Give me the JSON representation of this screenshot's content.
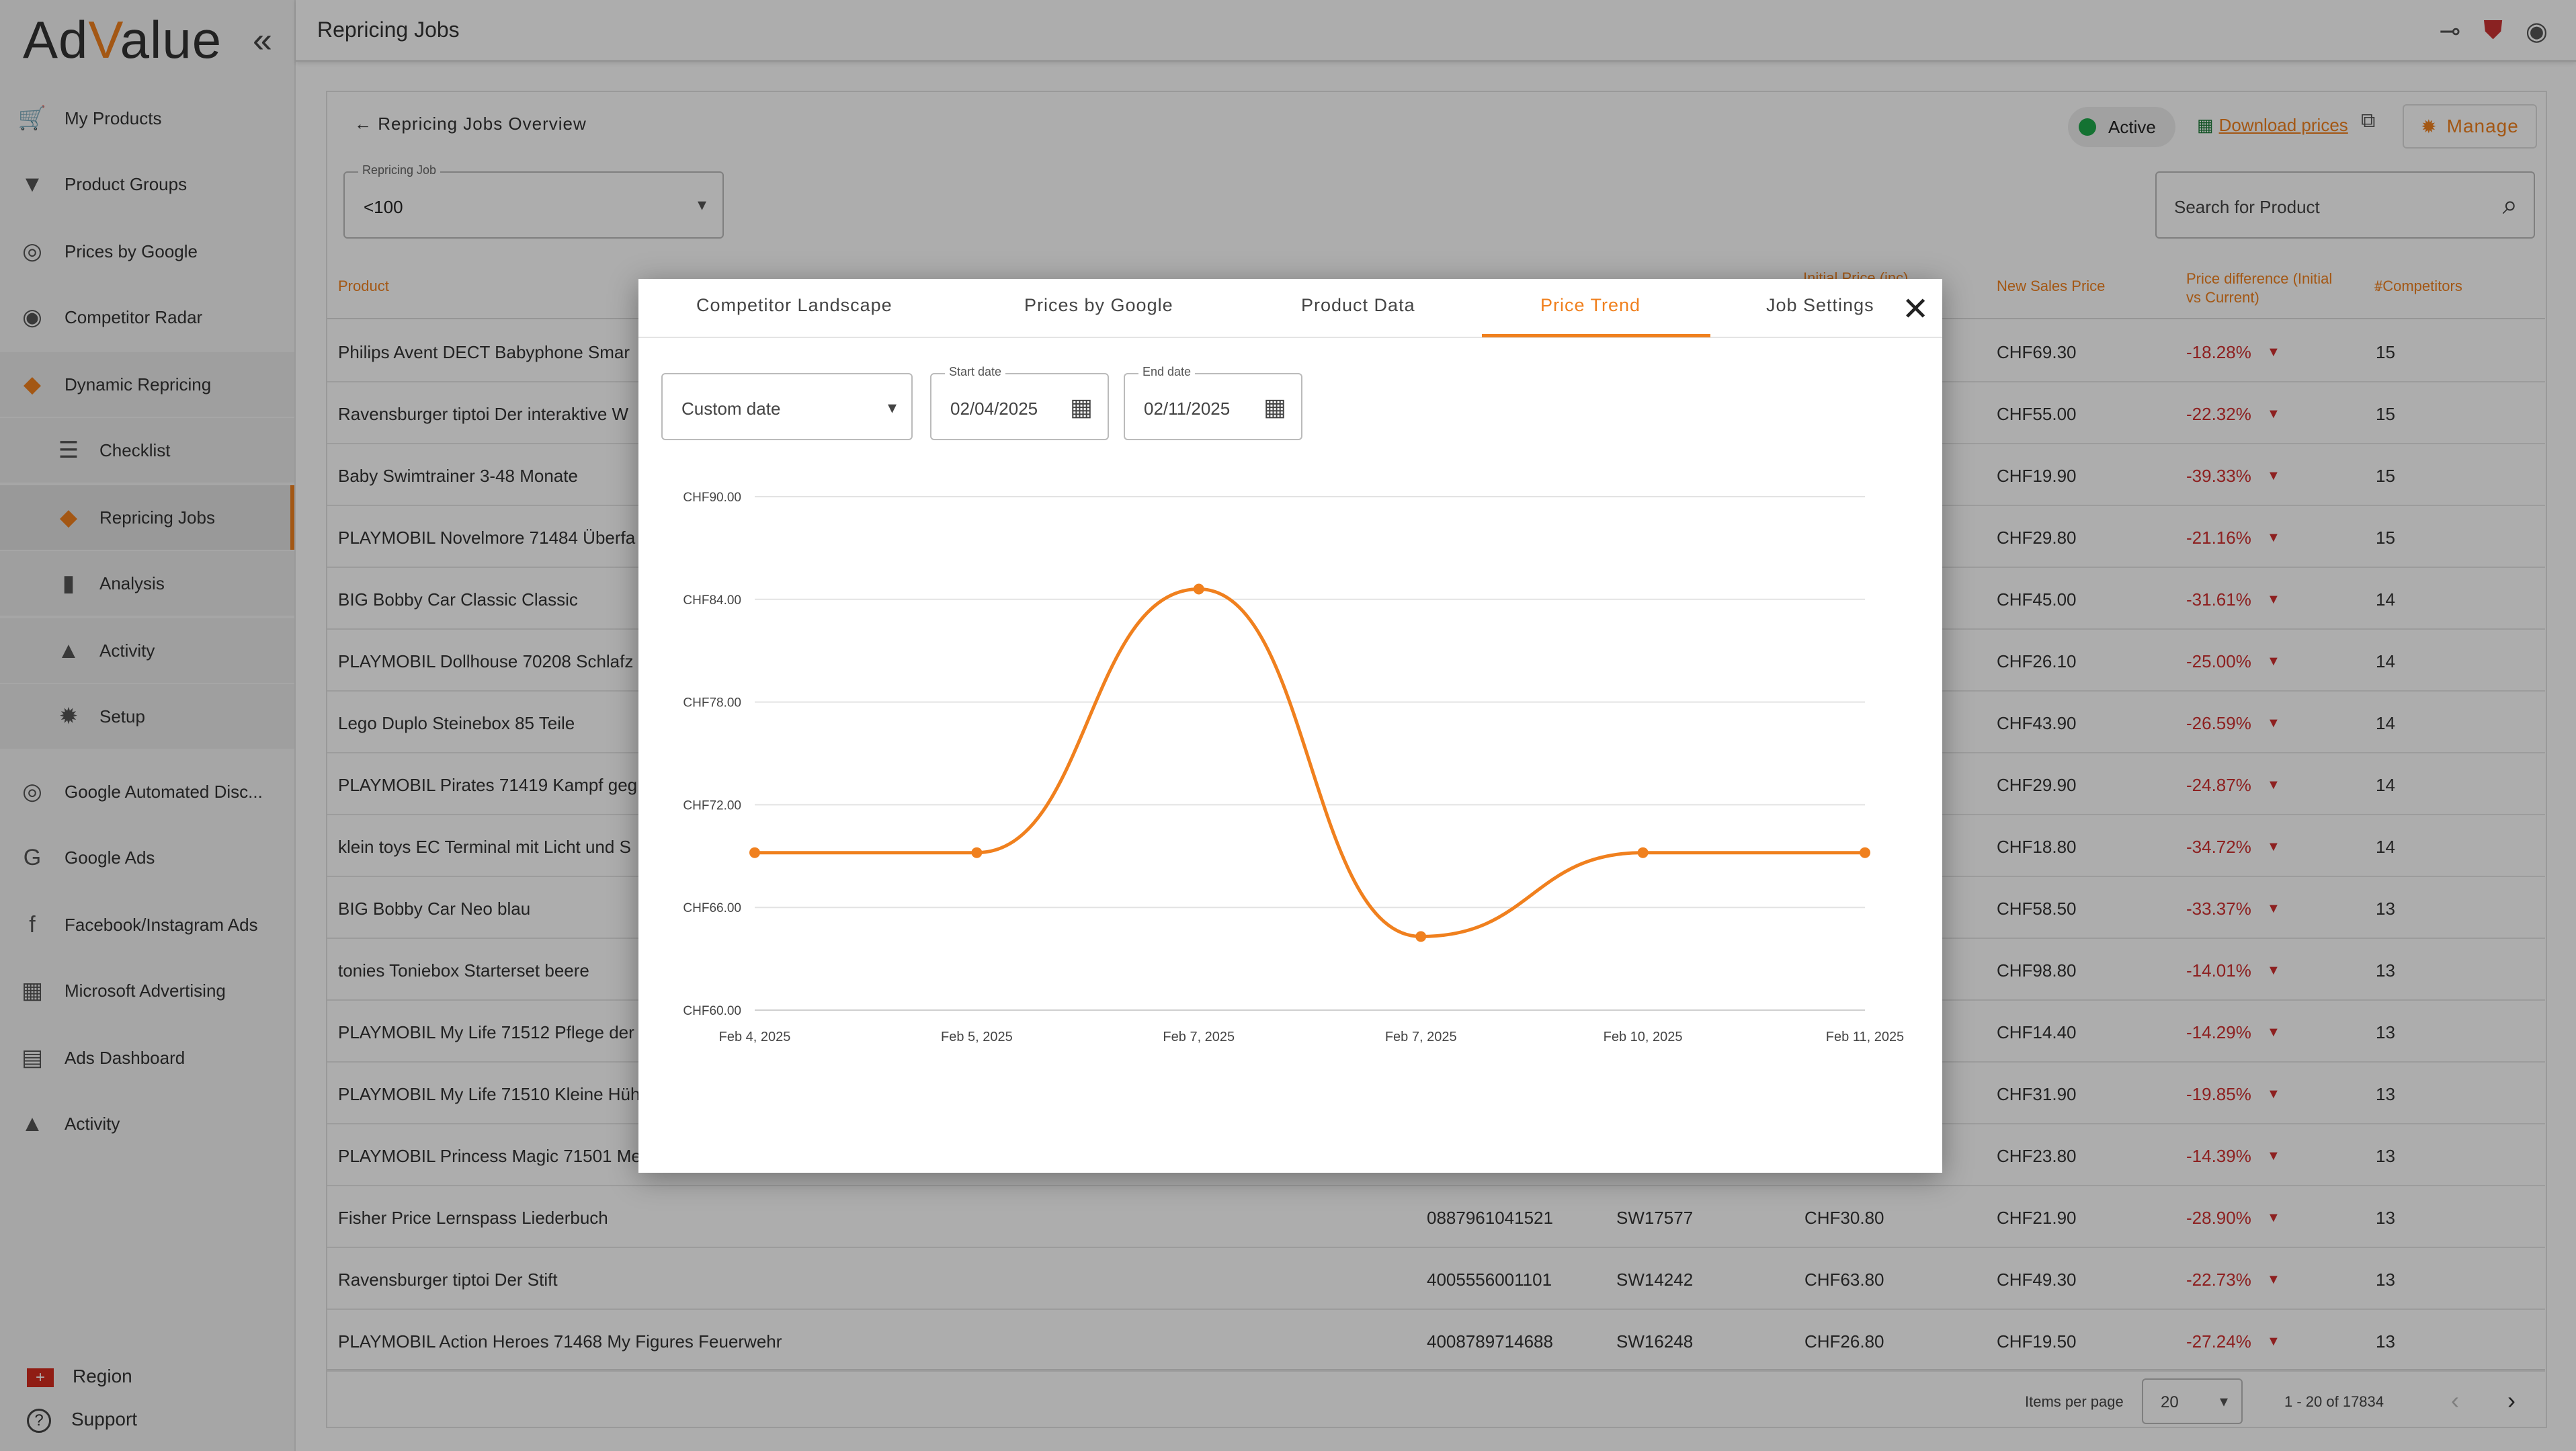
{
  "app": {
    "logo": "AdValue",
    "page_title": "Repricing Jobs"
  },
  "sidebar": {
    "items": [
      {
        "label": "My Products",
        "icon": "cart-icon"
      },
      {
        "label": "Product Groups",
        "icon": "filter-icon"
      },
      {
        "label": "Prices by Google",
        "icon": "google-price-icon"
      },
      {
        "label": "Competitor Radar",
        "icon": "radar-icon"
      },
      {
        "label": "Dynamic Repricing",
        "icon": "tag-icon"
      },
      {
        "label": "Checklist",
        "icon": "checklist-icon"
      },
      {
        "label": "Repricing Jobs",
        "icon": "tag-icon"
      },
      {
        "label": "Analysis",
        "icon": "bar-chart-icon"
      },
      {
        "label": "Activity",
        "icon": "bell-icon"
      },
      {
        "label": "Setup",
        "icon": "gear-icon"
      },
      {
        "label": "Google Automated Disc...",
        "icon": "google-price-icon"
      },
      {
        "label": "Google Ads",
        "icon": "google-icon"
      },
      {
        "label": "Facebook/Instagram Ads",
        "icon": "facebook-instagram-icon"
      },
      {
        "label": "Microsoft Advertising",
        "icon": "microsoft-icon"
      },
      {
        "label": "Ads Dashboard",
        "icon": "dashboard-icon"
      },
      {
        "label": "Activity",
        "icon": "bell-icon"
      }
    ],
    "region": "Region",
    "support": "Support"
  },
  "content": {
    "back_label": "Repricing Jobs Overview",
    "job_select": {
      "label": "Repricing Job",
      "value": "<100"
    },
    "status": "Active",
    "download": "Download prices",
    "manage": "Manage",
    "search_placeholder": "Search for Product",
    "columns": {
      "product": "Product",
      "initial_price": "Initial Price (inc)",
      "new_price": "New Sales Price",
      "diff": "Price difference (Initial vs Current)",
      "competitors": "#Competitors"
    },
    "rows": [
      {
        "product": "Philips Avent DECT Babyphone Smar",
        "gtin": "",
        "sku": "",
        "initial": "",
        "new": "CHF69.30",
        "diff": "-18.28%",
        "comp": "15"
      },
      {
        "product": "Ravensburger tiptoi Der interaktive W",
        "gtin": "",
        "sku": "",
        "initial": "",
        "new": "CHF55.00",
        "diff": "-22.32%",
        "comp": "15"
      },
      {
        "product": "Baby Swimtrainer 3-48 Monate",
        "gtin": "",
        "sku": "",
        "initial": "",
        "new": "CHF19.90",
        "diff": "-39.33%",
        "comp": "15"
      },
      {
        "product": "PLAYMOBIL Novelmore 71484 Überfa",
        "gtin": "",
        "sku": "",
        "initial": "",
        "new": "CHF29.80",
        "diff": "-21.16%",
        "comp": "15"
      },
      {
        "product": "BIG Bobby Car Classic Classic",
        "gtin": "",
        "sku": "",
        "initial": "",
        "new": "CHF45.00",
        "diff": "-31.61%",
        "comp": "14"
      },
      {
        "product": "PLAYMOBIL Dollhouse 70208 Schlafz",
        "gtin": "",
        "sku": "",
        "initial": "",
        "new": "CHF26.10",
        "diff": "-25.00%",
        "comp": "14"
      },
      {
        "product": "Lego Duplo Steinebox 85 Teile",
        "gtin": "",
        "sku": "",
        "initial": "",
        "new": "CHF43.90",
        "diff": "-26.59%",
        "comp": "14"
      },
      {
        "product": "PLAYMOBIL Pirates 71419 Kampf geg",
        "gtin": "",
        "sku": "",
        "initial": "",
        "new": "CHF29.90",
        "diff": "-24.87%",
        "comp": "14"
      },
      {
        "product": "klein toys EC Terminal mit Licht und S",
        "gtin": "",
        "sku": "",
        "initial": "",
        "new": "CHF18.80",
        "diff": "-34.72%",
        "comp": "14"
      },
      {
        "product": "BIG Bobby Car Neo blau",
        "gtin": "",
        "sku": "",
        "initial": "",
        "new": "CHF58.50",
        "diff": "-33.37%",
        "comp": "13"
      },
      {
        "product": "tonies Toniebox Starterset beere",
        "gtin": "",
        "sku": "",
        "initial": "",
        "new": "CHF98.80",
        "diff": "-14.01%",
        "comp": "13"
      },
      {
        "product": "PLAYMOBIL My Life 71512 Pflege der",
        "gtin": "",
        "sku": "",
        "initial": "",
        "new": "CHF14.40",
        "diff": "-14.29%",
        "comp": "13"
      },
      {
        "product": "PLAYMOBIL My Life 71510 Kleine Hüh",
        "gtin": "",
        "sku": "",
        "initial": "",
        "new": "CHF31.90",
        "diff": "-19.85%",
        "comp": "13"
      },
      {
        "product": "PLAYMOBIL Princess Magic 71501 Me",
        "gtin": "",
        "sku": "",
        "initial": "",
        "new": "CHF23.80",
        "diff": "-14.39%",
        "comp": "13"
      },
      {
        "product": "Fisher Price Lernspass Liederbuch",
        "gtin": "0887961041521",
        "sku": "SW17577",
        "initial": "CHF30.80",
        "new": "CHF21.90",
        "diff": "-28.90%",
        "comp": "13"
      },
      {
        "product": "Ravensburger tiptoi Der Stift",
        "gtin": "4005556001101",
        "sku": "SW14242",
        "initial": "CHF63.80",
        "new": "CHF49.30",
        "diff": "-22.73%",
        "comp": "13"
      },
      {
        "product": "PLAYMOBIL Action Heroes 71468 My Figures Feuerwehr",
        "gtin": "4008789714688",
        "sku": "SW16248",
        "initial": "CHF26.80",
        "new": "CHF19.50",
        "diff": "-27.24%",
        "comp": "13"
      }
    ],
    "pager": {
      "label": "Items per page",
      "value": "20",
      "range": "1 - 20 of 17834"
    }
  },
  "modal": {
    "tabs": [
      "Competitor Landscape",
      "Prices by Google",
      "Product Data",
      "Price Trend",
      "Job Settings"
    ],
    "active_tab": "Price Trend",
    "date_mode": "Custom date",
    "start_label": "Start date",
    "start_value": "02/04/2025",
    "end_label": "End date",
    "end_value": "02/11/2025"
  },
  "colors": {
    "accent": "#f0801e",
    "negative": "#d03030",
    "active": "#1ea84a"
  },
  "chart_data": {
    "type": "line",
    "categories": [
      "Feb 4, 2025",
      "Feb 5, 2025",
      "Feb 7, 2025",
      "Feb 7, 2025",
      "Feb 10, 2025",
      "Feb 11, 2025"
    ],
    "values": [
      69.2,
      69.2,
      84.6,
      64.3,
      69.2,
      69.2
    ],
    "ylim": [
      60,
      90
    ],
    "yticks": [
      "CHF60.00",
      "CHF66.00",
      "CHF72.00",
      "CHF78.00",
      "CHF84.00",
      "CHF90.00"
    ],
    "ytick_values": [
      60,
      66,
      72,
      78,
      84,
      90
    ],
    "grid": true,
    "color": "#f0801e"
  }
}
